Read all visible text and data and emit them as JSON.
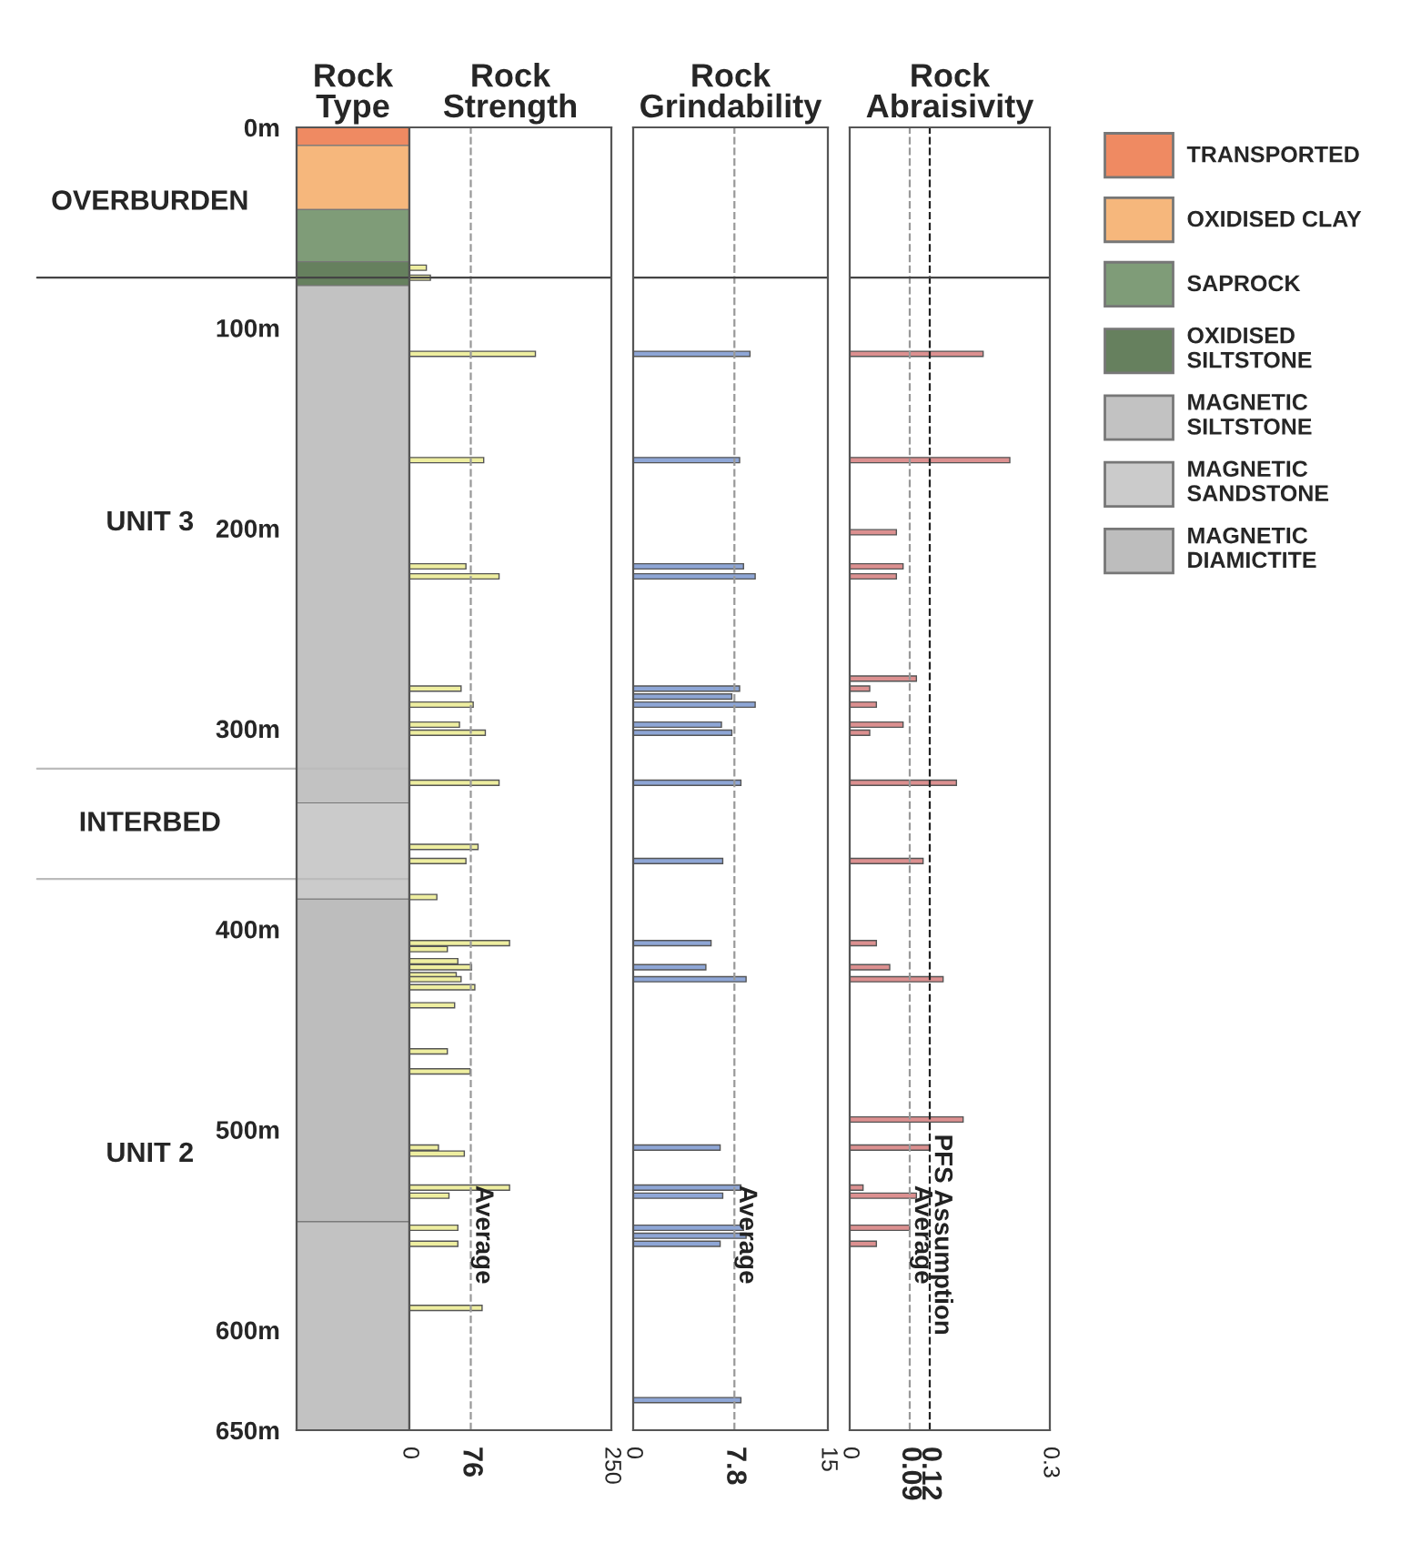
{
  "chart_data": [
    {
      "type": "bar",
      "title": "Rock\nType",
      "stacked": true,
      "categories": [
        null
      ],
      "ylim": [
        650,
        0
      ],
      "tick_labels": "y",
      "legend": "right",
      "yticks": [
        {
          "value": 0,
          "label": "0m"
        },
        {
          "value": 100,
          "label": "100m"
        },
        {
          "value": 200,
          "label": "200m"
        },
        {
          "value": 300,
          "label": "300m"
        },
        {
          "value": 400,
          "label": "400m"
        },
        {
          "value": 500,
          "label": "500m"
        },
        {
          "value": 600,
          "label": "600m"
        },
        {
          "value": 650,
          "label": "650m"
        }
      ],
      "ref_lines": [
        {
          "axis": "y",
          "value": 75,
          "color": "#444444",
          "line_style": "solid"
        },
        {
          "axis": "y",
          "value": 320,
          "color": "#bbbbbb",
          "line_style": "solid"
        },
        {
          "axis": "y",
          "value": 375,
          "color": "#bbbbbb",
          "line_style": "solid"
        }
      ],
      "annotations": [
        "OVERBURDEN",
        "UNIT 3",
        "INTERBED",
        "UNIT 2"
      ],
      "series": [
        {
          "name": "TRANSPORTED",
          "color": "#ef8a62",
          "values": [
            9
          ]
        },
        {
          "name": "OXIDISED CLAY",
          "color": "#f6b77c",
          "values": [
            32
          ]
        },
        {
          "name": "SAPROCK",
          "color": "#7f9c78",
          "values": [
            26
          ]
        },
        {
          "name": "OXIDISED\nSILTSTONE",
          "color": "#66805e",
          "values": [
            12
          ]
        },
        {
          "name": "MAGNETIC\nSILTSTONE",
          "color": "#c2c2c2",
          "values": [
            258
          ]
        },
        {
          "name": "MAGNETIC\nSANDSTONE",
          "color": "#cbcbcb",
          "values": [
            48
          ]
        },
        {
          "name": "MAGNETIC\nDIAMICTITE",
          "color": "#bdbdbd",
          "values": [
            161
          ]
        },
        {
          "color": "#c2c2c2",
          "values": [
            104
          ]
        }
      ]
    },
    {
      "type": "bar",
      "title": "Rock\nStrength",
      "orientation": "horizontal",
      "color": "#eeeea0",
      "xlim": [
        0,
        250
      ],
      "xticks": [
        0,
        76,
        250
      ],
      "ylim": [
        650,
        0
      ],
      "tick_labels": "x",
      "ref_lines": [
        {
          "axis": "x",
          "value": 76,
          "label": "Average",
          "color": "#999999",
          "line_style": "dashed"
        },
        {
          "axis": "y",
          "value": 75,
          "color": "#444444",
          "line_style": "solid"
        }
      ],
      "x": [
        70,
        75,
        113,
        166,
        219,
        224,
        280,
        288,
        298,
        302,
        327,
        359,
        366,
        384,
        407,
        410,
        416,
        419,
        423,
        425,
        429,
        438,
        461,
        471,
        509,
        512,
        529,
        533,
        549,
        557,
        589
      ],
      "values": [
        21,
        26,
        156,
        92,
        70,
        111,
        64,
        79,
        62,
        94,
        111,
        85,
        70,
        34,
        124,
        47,
        60,
        77,
        58,
        64,
        81,
        56,
        47,
        75,
        36,
        68,
        124,
        49,
        60,
        60,
        90
      ]
    },
    {
      "type": "bar",
      "title": "Rock\nGrindability",
      "orientation": "horizontal",
      "color": "#8ea6d6",
      "xlim": [
        0,
        15
      ],
      "xticks": [
        0,
        7.8,
        15
      ],
      "ylim": [
        650,
        0
      ],
      "tick_labels": "x",
      "ref_lines": [
        {
          "axis": "x",
          "value": 7.8,
          "label": "Average",
          "color": "#999999",
          "line_style": "dashed"
        },
        {
          "axis": "y",
          "value": 75,
          "color": "#444444",
          "line_style": "solid"
        }
      ],
      "x": [
        113,
        166,
        219,
        224,
        280,
        284,
        288,
        298,
        302,
        327,
        366,
        407,
        419,
        425,
        509,
        529,
        533,
        549,
        553,
        557,
        635
      ],
      "values": [
        9.0,
        8.2,
        8.5,
        9.4,
        8.2,
        7.6,
        9.4,
        6.8,
        7.6,
        8.3,
        6.9,
        6.0,
        5.6,
        8.7,
        6.7,
        8.3,
        6.9,
        8.5,
        8.7,
        6.7,
        8.3
      ]
    },
    {
      "type": "bar",
      "title": "Rock\nAbraisivity",
      "orientation": "horizontal",
      "color": "#dc9090",
      "xlim": [
        0,
        0.3
      ],
      "xticks": [
        0,
        0.09,
        0.12,
        0.3
      ],
      "ylim": [
        650,
        0
      ],
      "tick_labels": "x",
      "ref_lines": [
        {
          "axis": "x",
          "value": 0.09,
          "label": "Average",
          "color": "#999999",
          "line_style": "dashed"
        },
        {
          "axis": "x",
          "value": 0.12,
          "label": "PFS Assumption",
          "color": "#222222",
          "line_style": "dashed"
        },
        {
          "axis": "y",
          "value": 75,
          "color": "#444444",
          "line_style": "solid"
        }
      ],
      "x": [
        113,
        166,
        202,
        219,
        224,
        275,
        280,
        288,
        298,
        302,
        327,
        366,
        407,
        419,
        425,
        495,
        509,
        529,
        533,
        549,
        557
      ],
      "values": [
        0.2,
        0.24,
        0.07,
        0.08,
        0.07,
        0.1,
        0.03,
        0.04,
        0.08,
        0.03,
        0.16,
        0.11,
        0.04,
        0.06,
        0.14,
        0.17,
        0.12,
        0.02,
        0.1,
        0.09,
        0.04
      ]
    }
  ]
}
